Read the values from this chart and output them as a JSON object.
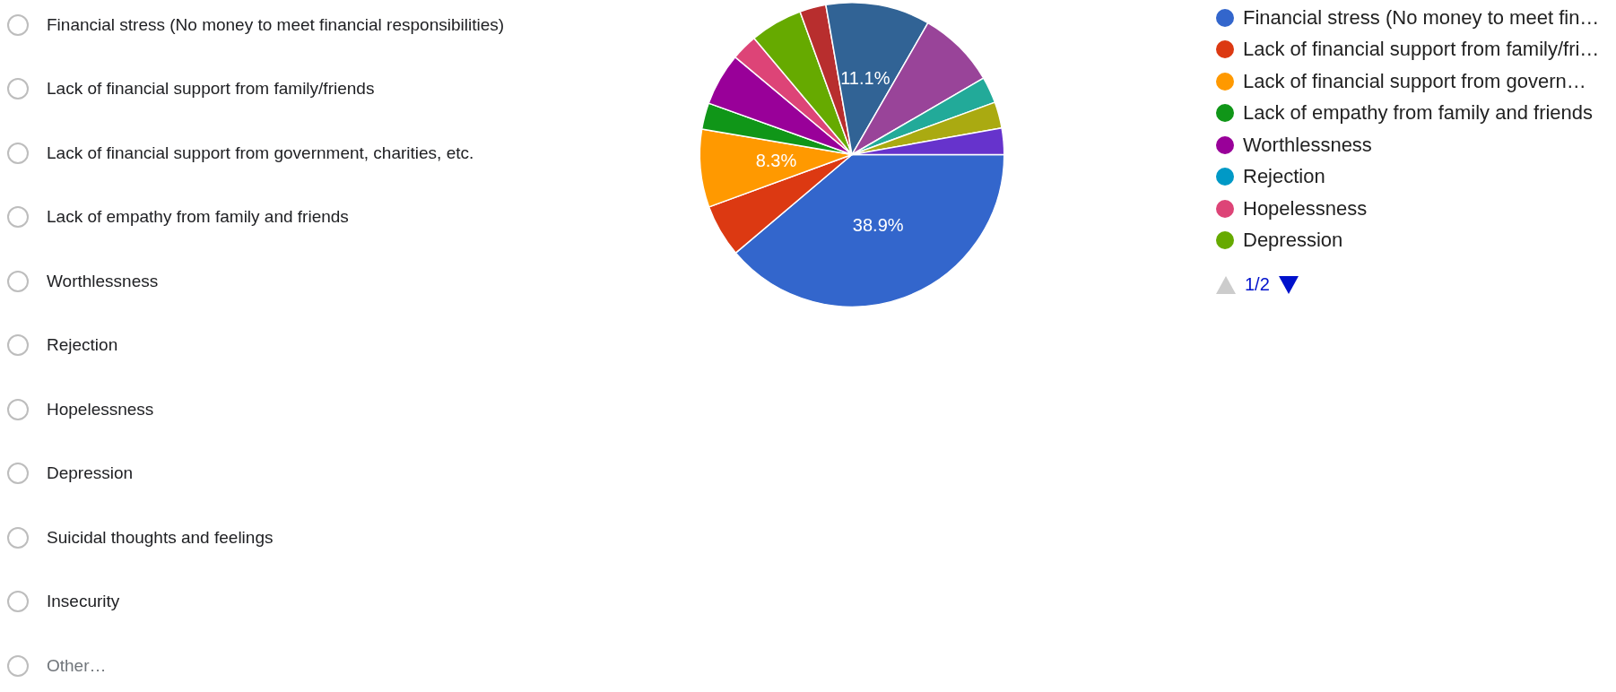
{
  "chart_data": {
    "type": "pie",
    "categories": [
      "Financial stress (No money to meet fin…",
      "Lack of financial support from family/fri…",
      "Lack of financial support from govern…",
      "Lack of empathy from family and friends",
      "Worthlessness",
      "Rejection",
      "Hopelessness",
      "Depression",
      null,
      null,
      null,
      null,
      null,
      null
    ],
    "values": [
      38.9,
      5.6,
      8.3,
      2.8,
      5.6,
      0,
      2.8,
      5.6,
      2.8,
      11.1,
      8.3,
      2.8,
      2.8,
      2.8
    ],
    "colors": [
      "#3366cc",
      "#dc3912",
      "#ff9900",
      "#109618",
      "#990099",
      "#0099c6",
      "#dd4477",
      "#66aa00",
      "#b82e2e",
      "#316395",
      "#994499",
      "#22aa99",
      "#aaaa11",
      "#6633cc"
    ],
    "value_labels": [
      "38.9%",
      null,
      "8.3%",
      null,
      null,
      null,
      null,
      null,
      null,
      "11.1%",
      null,
      null,
      null,
      null
    ],
    "legend": "right",
    "annotations": [
      "Financial stress (No money to meet financial responsibilities)",
      "Lack of financial support from family/friends",
      "Lack of financial support from government, charities, etc.",
      "Lack of empathy from family and friends",
      "Worthlessness",
      "Rejection",
      "Hopelessness",
      "Depression",
      "Suicidal thoughts and feelings",
      "Insecurity",
      "Other…",
      "1/2"
    ]
  }
}
